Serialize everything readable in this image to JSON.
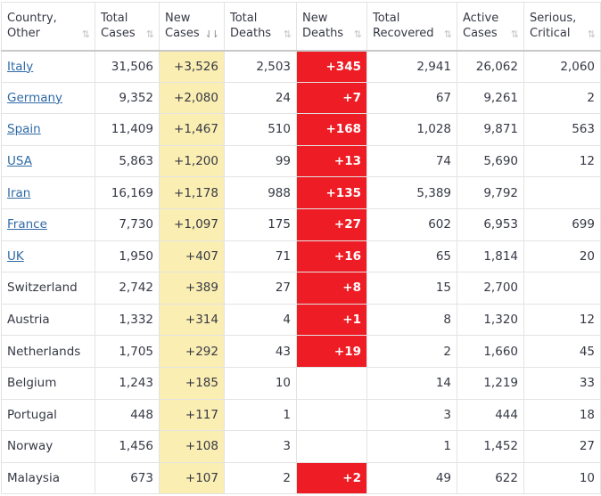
{
  "colors": {
    "new_cases_bg": "#fbeeb2",
    "new_deaths_bg": "#ee1c24",
    "link": "#2f6aa6"
  },
  "icons": {
    "sort": "sort-arrows-icon",
    "sort_active": "sort-desc-icon"
  },
  "headers": [
    {
      "line1": "Country,",
      "line2": "Other",
      "sort": "⇅"
    },
    {
      "line1": "Total",
      "line2": "Cases",
      "sort": "⇅"
    },
    {
      "line1": "New",
      "line2": "Cases",
      "sort": "⇃⇂"
    },
    {
      "line1": "Total",
      "line2": "Deaths",
      "sort": "⇅"
    },
    {
      "line1": "New",
      "line2": "Deaths",
      "sort": "⇅"
    },
    {
      "line1": "Total",
      "line2": "Recovered",
      "sort": "⇅"
    },
    {
      "line1": "Active",
      "line2": "Cases",
      "sort": "⇅"
    },
    {
      "line1": "Serious,",
      "line2": "Critical",
      "sort": "⇅"
    }
  ],
  "rows": [
    {
      "country": "Italy",
      "link": true,
      "total_cases": "31,506",
      "new_cases": "+3,526",
      "total_deaths": "2,503",
      "new_deaths": "+345",
      "total_recovered": "2,941",
      "active_cases": "26,062",
      "serious_critical": "2,060"
    },
    {
      "country": "Germany",
      "link": true,
      "total_cases": "9,352",
      "new_cases": "+2,080",
      "total_deaths": "24",
      "new_deaths": "+7",
      "total_recovered": "67",
      "active_cases": "9,261",
      "serious_critical": "2"
    },
    {
      "country": "Spain",
      "link": true,
      "total_cases": "11,409",
      "new_cases": "+1,467",
      "total_deaths": "510",
      "new_deaths": "+168",
      "total_recovered": "1,028",
      "active_cases": "9,871",
      "serious_critical": "563"
    },
    {
      "country": "USA",
      "link": true,
      "total_cases": "5,863",
      "new_cases": "+1,200",
      "total_deaths": "99",
      "new_deaths": "+13",
      "total_recovered": "74",
      "active_cases": "5,690",
      "serious_critical": "12"
    },
    {
      "country": "Iran",
      "link": true,
      "total_cases": "16,169",
      "new_cases": "+1,178",
      "total_deaths": "988",
      "new_deaths": "+135",
      "total_recovered": "5,389",
      "active_cases": "9,792",
      "serious_critical": ""
    },
    {
      "country": "France",
      "link": true,
      "total_cases": "7,730",
      "new_cases": "+1,097",
      "total_deaths": "175",
      "new_deaths": "+27",
      "total_recovered": "602",
      "active_cases": "6,953",
      "serious_critical": "699"
    },
    {
      "country": "UK",
      "link": true,
      "total_cases": "1,950",
      "new_cases": "+407",
      "total_deaths": "71",
      "new_deaths": "+16",
      "total_recovered": "65",
      "active_cases": "1,814",
      "serious_critical": "20"
    },
    {
      "country": "Switzerland",
      "link": false,
      "total_cases": "2,742",
      "new_cases": "+389",
      "total_deaths": "27",
      "new_deaths": "+8",
      "total_recovered": "15",
      "active_cases": "2,700",
      "serious_critical": ""
    },
    {
      "country": "Austria",
      "link": false,
      "total_cases": "1,332",
      "new_cases": "+314",
      "total_deaths": "4",
      "new_deaths": "+1",
      "total_recovered": "8",
      "active_cases": "1,320",
      "serious_critical": "12"
    },
    {
      "country": "Netherlands",
      "link": false,
      "total_cases": "1,705",
      "new_cases": "+292",
      "total_deaths": "43",
      "new_deaths": "+19",
      "total_recovered": "2",
      "active_cases": "1,660",
      "serious_critical": "45"
    },
    {
      "country": "Belgium",
      "link": false,
      "total_cases": "1,243",
      "new_cases": "+185",
      "total_deaths": "10",
      "new_deaths": "",
      "total_recovered": "14",
      "active_cases": "1,219",
      "serious_critical": "33"
    },
    {
      "country": "Portugal",
      "link": false,
      "total_cases": "448",
      "new_cases": "+117",
      "total_deaths": "1",
      "new_deaths": "",
      "total_recovered": "3",
      "active_cases": "444",
      "serious_critical": "18"
    },
    {
      "country": "Norway",
      "link": false,
      "total_cases": "1,456",
      "new_cases": "+108",
      "total_deaths": "3",
      "new_deaths": "",
      "total_recovered": "1",
      "active_cases": "1,452",
      "serious_critical": "27"
    },
    {
      "country": "Malaysia",
      "link": false,
      "total_cases": "673",
      "new_cases": "+107",
      "total_deaths": "2",
      "new_deaths": "+2",
      "total_recovered": "49",
      "active_cases": "622",
      "serious_critical": "10"
    }
  ]
}
